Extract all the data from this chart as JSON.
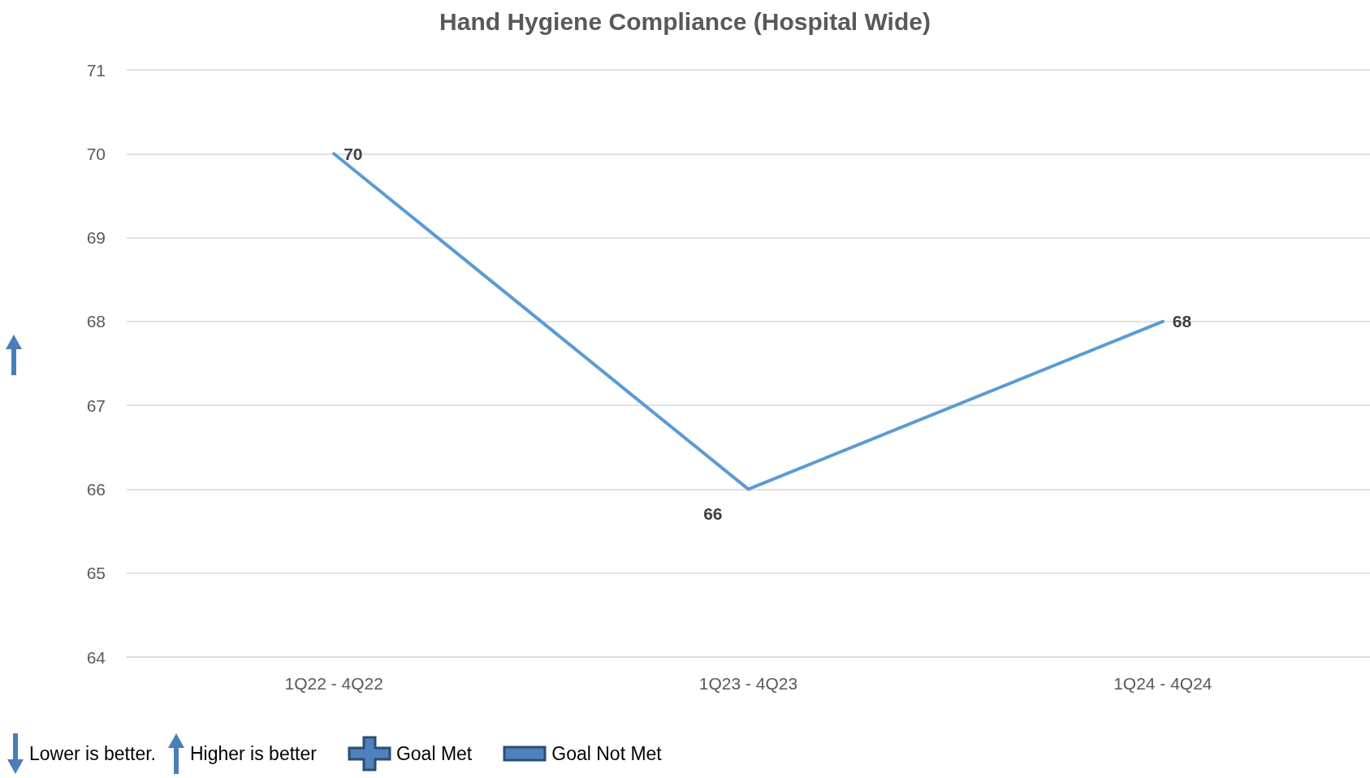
{
  "chart_data": {
    "type": "line",
    "title": "Hand Hygiene Compliance (Hospital Wide)",
    "categories": [
      "1Q22 - 4Q22",
      "1Q23 - 4Q23",
      "1Q24 - 4Q24"
    ],
    "series": [
      {
        "color": "#5b9bd5",
        "values": [
          70,
          66,
          68
        ]
      }
    ],
    "ylim": [
      64,
      71
    ],
    "yticks": [
      64,
      65,
      66,
      67,
      68,
      69,
      70,
      71
    ],
    "grid": "y",
    "data_labels": true,
    "marker": "none",
    "line_style": "solid",
    "annotations": [
      "Lower is better.",
      "Higher is better",
      "Goal Met",
      "Goal Not Met"
    ]
  }
}
